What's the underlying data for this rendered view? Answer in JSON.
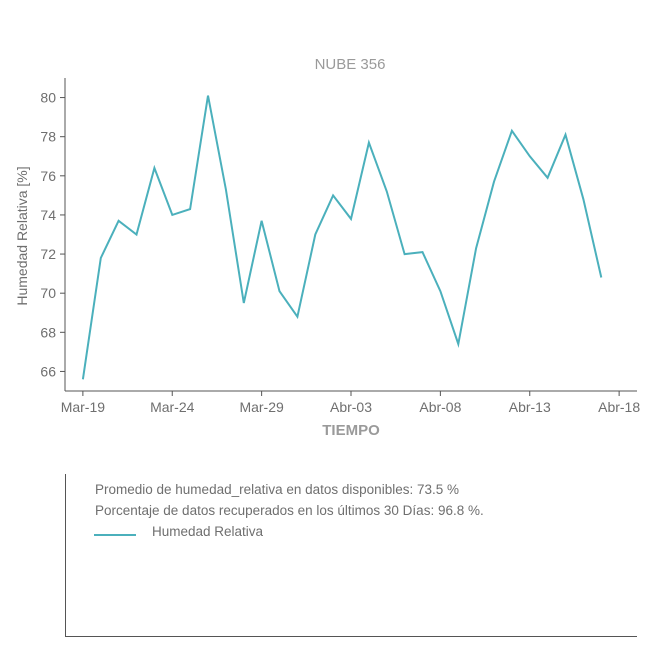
{
  "chart_data": {
    "type": "line",
    "title": "NUBE 356",
    "xlabel": "TIEMPO",
    "ylabel": "Humedad Relativa [%]",
    "x_ticks": [
      "Mar-19",
      "Mar-24",
      "Mar-29",
      "Abr-03",
      "Abr-08",
      "Abr-13",
      "Abr-18"
    ],
    "y_ticks": [
      "66",
      "68",
      "70",
      "72",
      "74",
      "76",
      "78",
      "80"
    ],
    "xlim": [
      "Mar-18",
      "Abr-19"
    ],
    "ylim": [
      65,
      81
    ],
    "grid": false,
    "series": [
      {
        "name": "Humedad Relativa",
        "color": "#4bb0bc",
        "x": [
          "Mar-19",
          "Mar-20",
          "Mar-21",
          "Mar-22",
          "Mar-23",
          "Mar-24",
          "Mar-25",
          "Mar-26",
          "Mar-27",
          "Mar-28",
          "Mar-29",
          "Mar-30",
          "Mar-31",
          "Abr-01",
          "Abr-02",
          "Abr-03",
          "Abr-04",
          "Abr-05",
          "Abr-06",
          "Abr-07",
          "Abr-08",
          "Abr-09",
          "Abr-10",
          "Abr-11",
          "Abr-12",
          "Abr-13",
          "Abr-14",
          "Abr-15",
          "Abr-16",
          "Abr-17",
          "Abr-18"
        ],
        "values": [
          65.6,
          71.8,
          73.7,
          73.0,
          76.4,
          74.0,
          74.3,
          80.1,
          75.3,
          69.5,
          73.7,
          70.1,
          68.8,
          73.0,
          75.0,
          73.8,
          77.7,
          75.2,
          72.0,
          72.1,
          70.1,
          67.4,
          72.3,
          75.7,
          78.3,
          77.0,
          75.9,
          78.1,
          74.8,
          70.8,
          null
        ]
      }
    ]
  },
  "info": {
    "avg_text": "Promedio de humedad_relativa en datos disponibles: 73.5 %",
    "pct_text": "Porcentaje de datos recuperados en los últimos 30 Días: 96.8 %."
  },
  "legend": {
    "label": "Humedad Relativa"
  }
}
